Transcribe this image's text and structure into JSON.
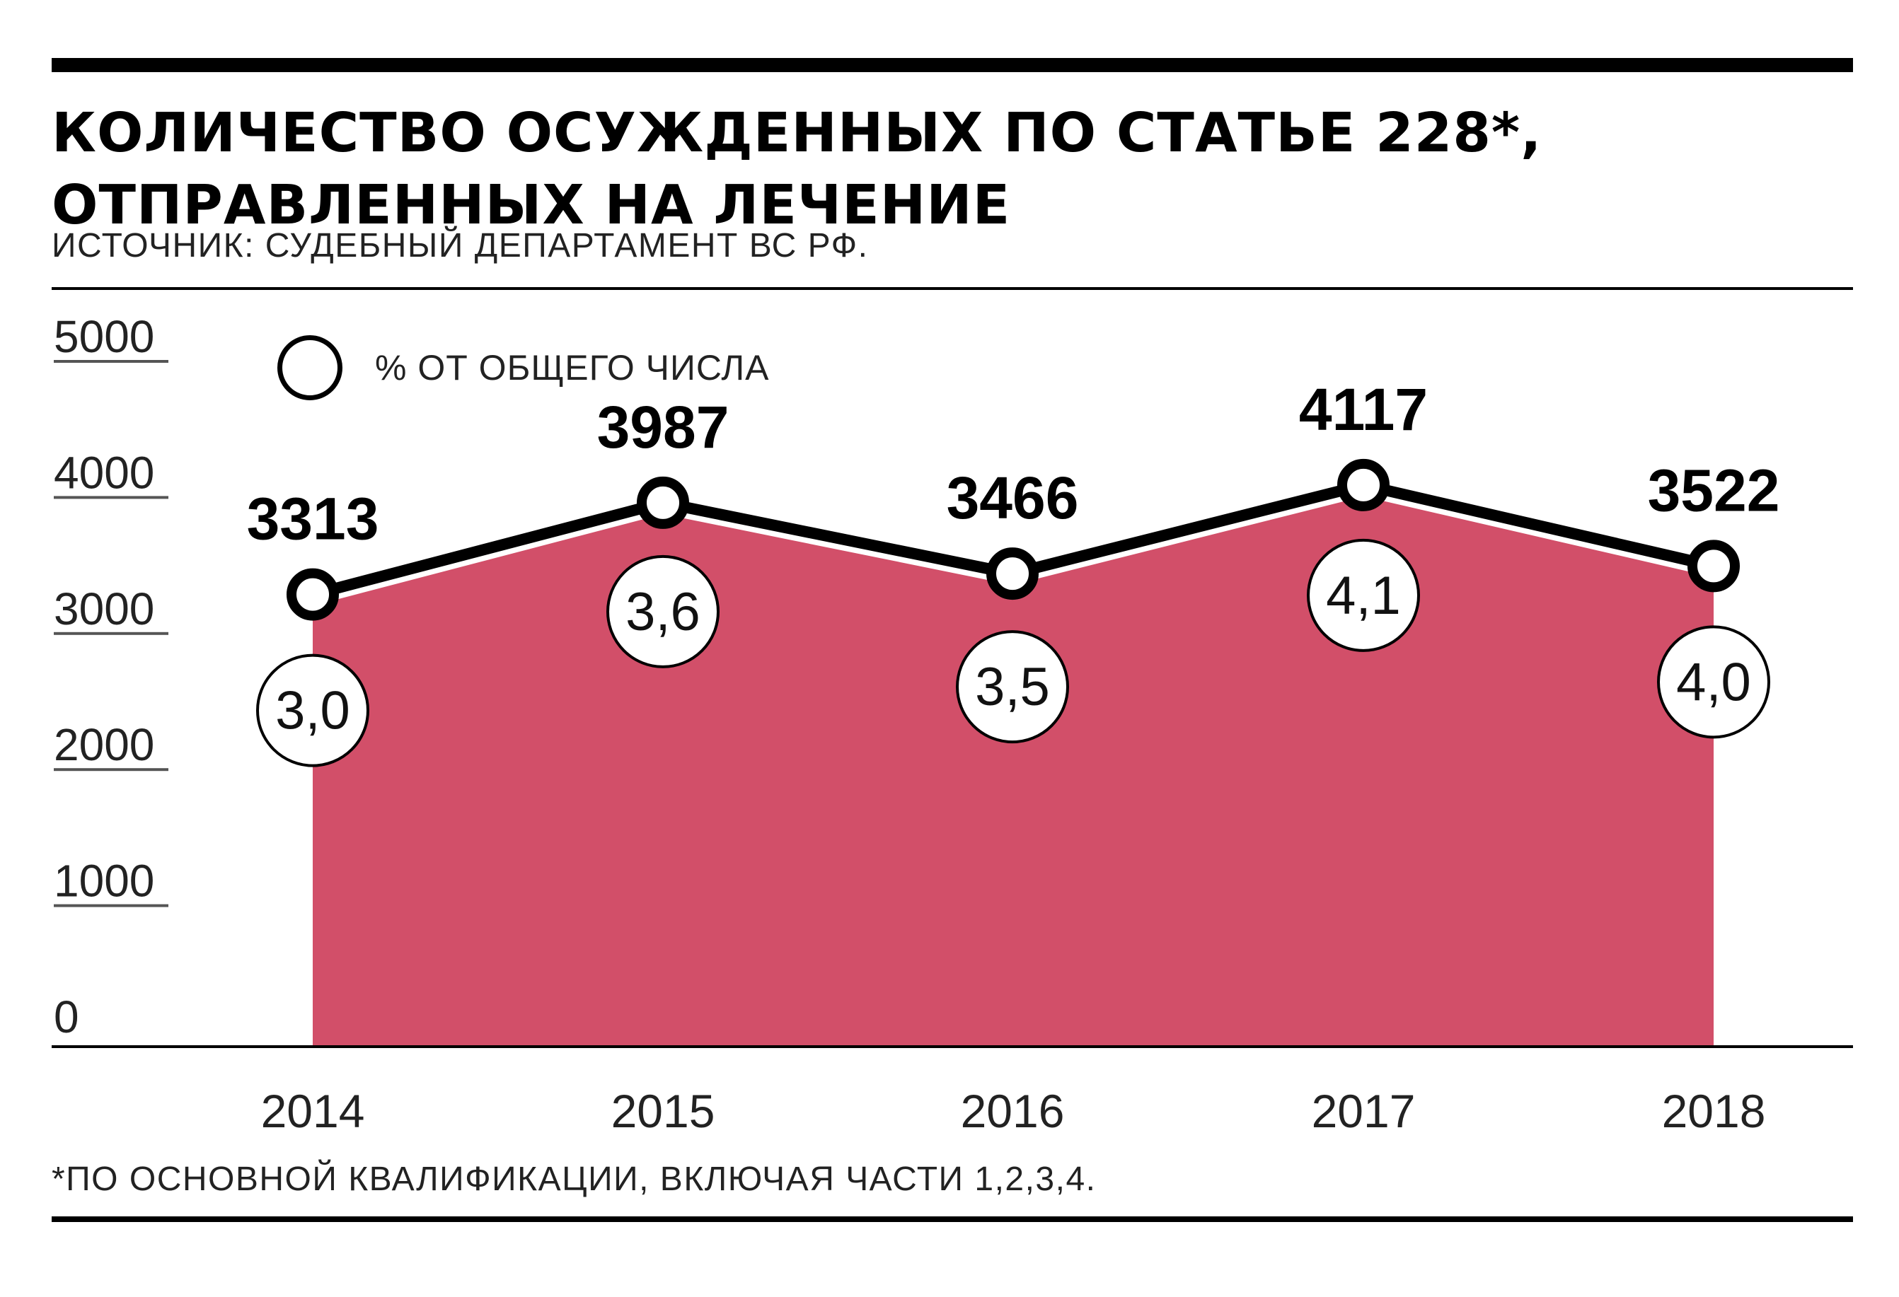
{
  "chart_data": {
    "type": "area",
    "title": "КОЛИЧЕСТВО ОСУЖДЕННЫХ ПО СТАТЬЕ 228*, ОТПРАВЛЕННЫХ НА ЛЕЧЕНИЕ",
    "subtitle": "ИСТОЧНИК: СУДЕБНЫЙ ДЕПАРТАМЕНТ ВС РФ.",
    "footnote": "*ПО ОСНОВНОЙ КВАЛИФИКАЦИИ, ВКЛЮЧАЯ ЧАСТИ 1,2,3,4.",
    "legend_label": "% ОТ ОБЩЕГО ЧИСЛА",
    "categories": [
      "2014",
      "2015",
      "2016",
      "2017",
      "2018"
    ],
    "values": [
      3313,
      3987,
      3466,
      4117,
      3522
    ],
    "value_labels": [
      "3313",
      "3987",
      "3466",
      "4117",
      "3522"
    ],
    "percent_labels": [
      "3,0",
      "3,6",
      "3,5",
      "4,1",
      "4,0"
    ],
    "ylim": [
      0,
      5000
    ],
    "yticks": [
      "0",
      "1000",
      "2000",
      "3000",
      "4000",
      "5000"
    ],
    "colors": {
      "area": "#d24f69",
      "line": "#000000"
    }
  }
}
